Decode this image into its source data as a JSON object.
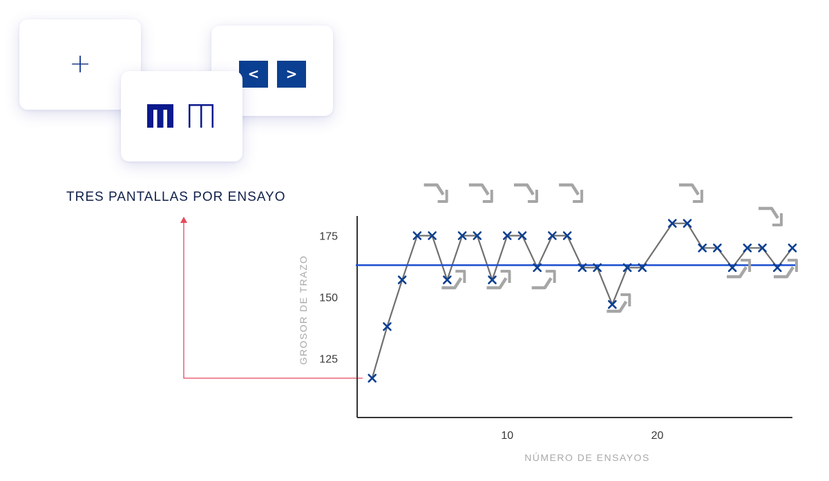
{
  "cards": {
    "plus_symbol": "+",
    "prev_label": "<",
    "next_label": ">"
  },
  "caption": "TRES PANTALLAS POR ENSAYO",
  "colors": {
    "accent": "#0a3f91",
    "reference_line": "#1c4fd0",
    "series_line": "#6f6f6f",
    "marker": "#0a3f91",
    "arrow": "#a6a6a6",
    "annotation": "#e8485c"
  },
  "chart_data": {
    "type": "line",
    "xlabel": "NÚMERO DE ENSAYOS",
    "ylabel": "GROSOR DE TRAZO",
    "xlim": [
      0,
      29
    ],
    "ylim": [
      101,
      183
    ],
    "x_ticks": [
      10,
      20
    ],
    "y_ticks": [
      125,
      150,
      175
    ],
    "x": [
      1,
      2,
      3,
      4,
      5,
      6,
      7,
      8,
      9,
      10,
      11,
      12,
      13,
      14,
      15,
      16,
      17,
      18,
      19,
      20,
      21,
      22,
      23,
      24,
      25,
      26,
      27,
      28,
      29
    ],
    "series": [
      {
        "values": [
          117,
          138,
          157,
          175,
          175,
          157,
          175,
          175,
          157,
          175,
          175,
          162,
          175,
          175,
          162,
          162,
          147,
          162,
          162,
          null,
          180,
          180,
          170,
          170,
          162,
          170,
          170,
          162,
          170
        ]
      }
    ],
    "reference_line": 163,
    "markers": [
      {
        "x": 1,
        "y": 117
      },
      {
        "x": 2,
        "y": 138
      },
      {
        "x": 3,
        "y": 157
      },
      {
        "x": 4,
        "y": 175
      },
      {
        "x": 5,
        "y": 175
      },
      {
        "x": 6,
        "y": 157
      },
      {
        "x": 7,
        "y": 175
      },
      {
        "x": 8,
        "y": 175
      },
      {
        "x": 9,
        "y": 157
      },
      {
        "x": 10,
        "y": 175
      },
      {
        "x": 11,
        "y": 175
      },
      {
        "x": 12,
        "y": 162
      },
      {
        "x": 13,
        "y": 175
      },
      {
        "x": 14,
        "y": 175
      },
      {
        "x": 15,
        "y": 162
      },
      {
        "x": 16,
        "y": 162
      },
      {
        "x": 17,
        "y": 147
      },
      {
        "x": 18,
        "y": 162
      },
      {
        "x": 19,
        "y": 162
      },
      {
        "x": 21,
        "y": 180
      },
      {
        "x": 22,
        "y": 180
      },
      {
        "x": 23,
        "y": 170
      },
      {
        "x": 24,
        "y": 170
      },
      {
        "x": 25,
        "y": 162
      },
      {
        "x": 26,
        "y": 170
      },
      {
        "x": 27,
        "y": 170
      },
      {
        "x": 28,
        "y": 162
      },
      {
        "x": 29,
        "y": 170
      }
    ],
    "annotations": {
      "down_arrows_after_trial": [
        5,
        8,
        11,
        14,
        22,
        28
      ],
      "up_arrows_after_trial": [
        6,
        9,
        12,
        17,
        25,
        28
      ]
    },
    "grid": false,
    "legend": "none"
  }
}
